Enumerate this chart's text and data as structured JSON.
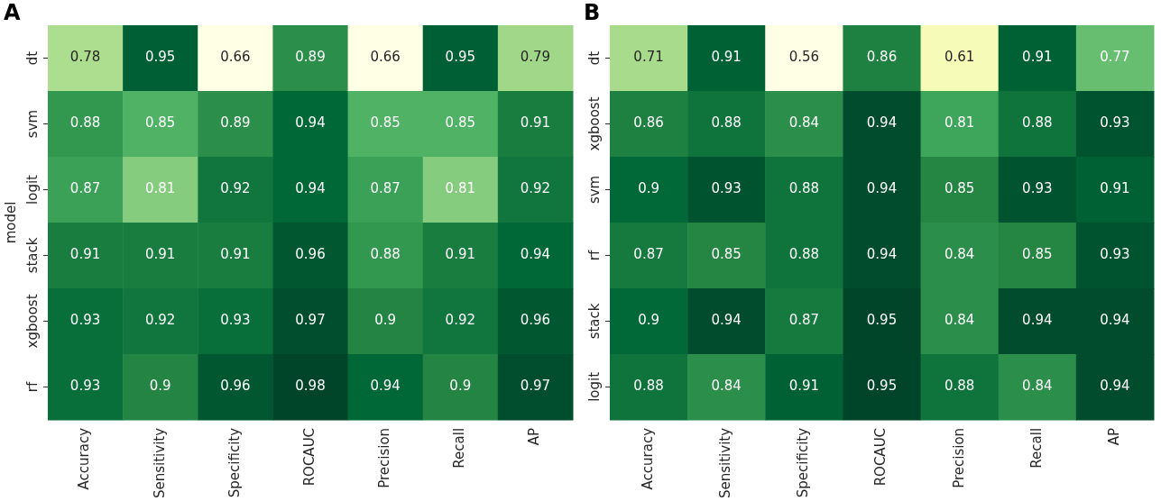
{
  "chart_data": [
    {
      "type": "heatmap",
      "title": "A",
      "ylabel": "model",
      "categories": [
        "Accuracy",
        "Sensitivity",
        "Specificity",
        "ROCAUC",
        "Precision",
        "Recall",
        "AP"
      ],
      "y_categories": [
        "dt",
        "svm",
        "logit",
        "stack",
        "xgboost",
        "rf"
      ],
      "cells": [
        [
          0.78,
          0.95,
          0.66,
          0.89,
          0.66,
          0.95,
          0.79
        ],
        [
          0.88,
          0.85,
          0.89,
          0.94,
          0.85,
          0.85,
          0.91
        ],
        [
          0.87,
          0.81,
          0.92,
          0.94,
          0.87,
          0.81,
          0.92
        ],
        [
          0.91,
          0.91,
          0.91,
          0.96,
          0.88,
          0.91,
          0.94
        ],
        [
          0.93,
          0.92,
          0.93,
          0.97,
          0.9,
          0.92,
          0.96
        ],
        [
          0.93,
          0.9,
          0.96,
          0.98,
          0.94,
          0.9,
          0.97
        ]
      ],
      "data_labels": true
    },
    {
      "type": "heatmap",
      "title": "B",
      "categories": [
        "Accuracy",
        "Sensitivity",
        "Specificity",
        "ROCAUC",
        "Precision",
        "Recall",
        "AP"
      ],
      "y_categories": [
        "dt",
        "xgboost",
        "svm",
        "rf",
        "stack",
        "logit"
      ],
      "cells": [
        [
          0.71,
          0.91,
          0.56,
          0.86,
          0.61,
          0.91,
          0.77
        ],
        [
          0.86,
          0.88,
          0.84,
          0.94,
          0.81,
          0.88,
          0.93
        ],
        [
          0.9,
          0.93,
          0.88,
          0.94,
          0.85,
          0.93,
          0.91
        ],
        [
          0.87,
          0.85,
          0.88,
          0.94,
          0.84,
          0.85,
          0.93
        ],
        [
          0.9,
          0.94,
          0.87,
          0.95,
          0.84,
          0.94,
          0.94
        ],
        [
          0.88,
          0.84,
          0.91,
          0.95,
          0.88,
          0.84,
          0.94
        ]
      ],
      "data_labels": true
    }
  ]
}
